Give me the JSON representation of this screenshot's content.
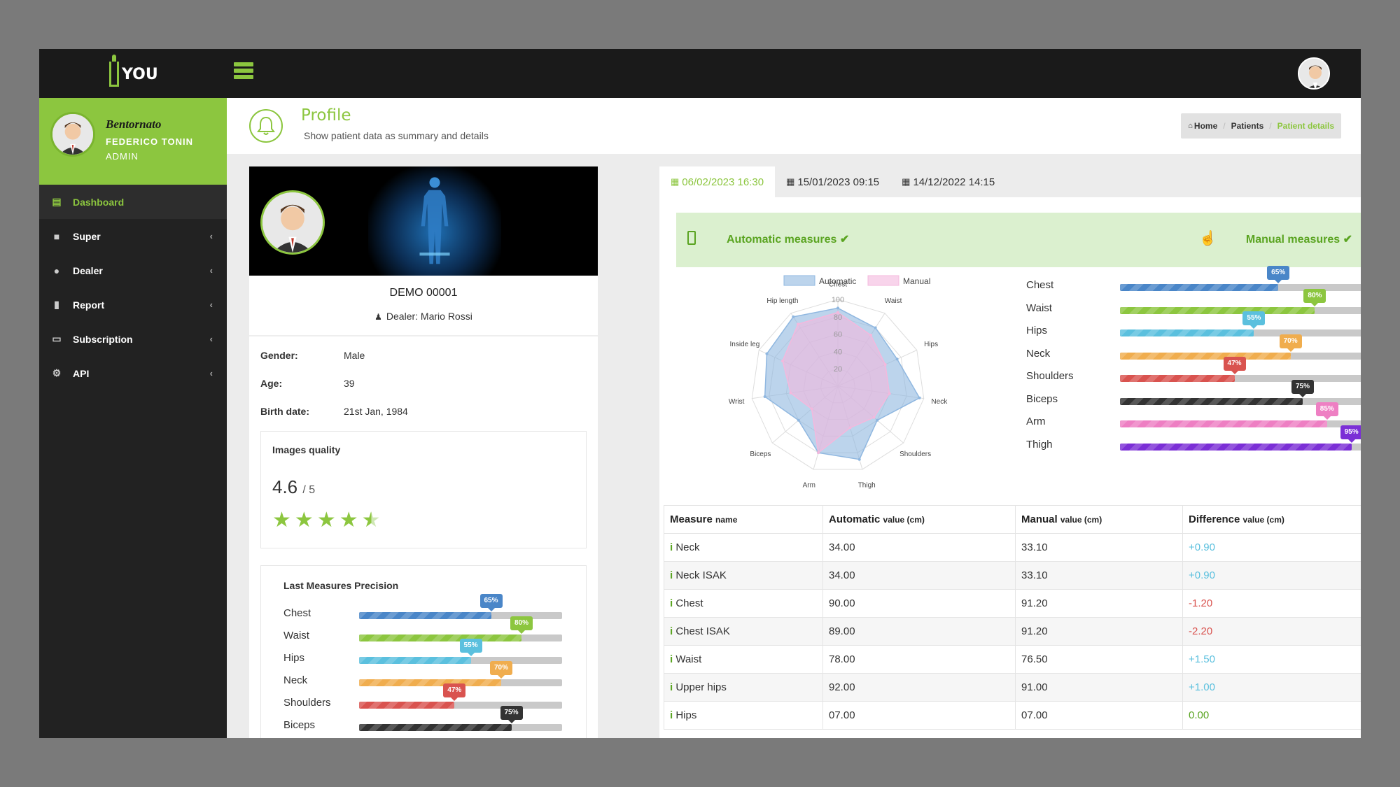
{
  "app": {
    "logo_text": "YOU"
  },
  "user": {
    "greeting": "Bentornato",
    "name": "FEDERICO TONIN",
    "role": "ADMIN"
  },
  "nav": [
    {
      "label": "Dashboard",
      "icon": "clipboard-icon"
    },
    {
      "label": "Super",
      "icon": "lock-icon"
    },
    {
      "label": "Dealer",
      "icon": "user-tie-icon"
    },
    {
      "label": "Report",
      "icon": "file-icon"
    },
    {
      "label": "Subscription",
      "icon": "credit-card-icon"
    },
    {
      "label": "API",
      "icon": "cogs-icon"
    }
  ],
  "page": {
    "title": "Profile",
    "subtitle": "Show patient data as summary and details"
  },
  "breadcrumb": [
    "Home",
    "Patients",
    "Patient details"
  ],
  "patient": {
    "code": "DEMO 00001",
    "dealer": "Dealer: Mario Rossi",
    "info": [
      {
        "label": "Gender:",
        "value": "Male"
      },
      {
        "label": "Age:",
        "value": "39"
      },
      {
        "label": "Birth date:",
        "value": "21st Jan, 1984"
      }
    ]
  },
  "quality": {
    "title": "Images quality",
    "score": "4.6",
    "max": "/ 5",
    "rating": 4.5
  },
  "precision": {
    "title": "Last Measures Precision",
    "items": [
      {
        "label": "Chest",
        "value": 65,
        "pct": "65%",
        "color": "#4a86c8"
      },
      {
        "label": "Waist",
        "value": 80,
        "pct": "80%",
        "color": "#8cc63f"
      },
      {
        "label": "Hips",
        "value": 55,
        "pct": "55%",
        "color": "#5bc0de"
      },
      {
        "label": "Neck",
        "value": 70,
        "pct": "70%",
        "color": "#f0ad4e"
      },
      {
        "label": "Shoulders",
        "value": 47,
        "pct": "47%",
        "color": "#d9534f"
      },
      {
        "label": "Biceps",
        "value": 75,
        "pct": "75%",
        "color": "#333333"
      },
      {
        "label": "Arm",
        "value": 85,
        "pct": "85%",
        "color": "#ee7fc3"
      },
      {
        "label": "Thigh",
        "value": 95,
        "pct": "95%",
        "color": "#7b2fd6"
      }
    ]
  },
  "tabs": [
    "06/02/2023 16:30",
    "15/01/2023 09:15",
    "14/12/2022 14:15"
  ],
  "measures_banner": {
    "automatic": "Automatic measures ✔",
    "manual": "Manual measures ✔"
  },
  "chart_data": {
    "type": "radar",
    "categories": [
      "Chest",
      "Waist",
      "Hips",
      "Neck",
      "Shoulders",
      "Thigh",
      "Arm",
      "Biceps",
      "Wrist",
      "Inside leg",
      "Hip length"
    ],
    "ticks": [
      "20",
      "40",
      "60",
      "80",
      "100"
    ],
    "range": [
      0,
      100
    ],
    "series": [
      {
        "name": "Automatic",
        "color": "#8fb7e0",
        "values": [
          90,
          80,
          75,
          95,
          60,
          88,
          80,
          60,
          85,
          90,
          95
        ]
      },
      {
        "name": "Manual",
        "color": "#f4b8dd",
        "values": [
          85,
          70,
          60,
          60,
          55,
          50,
          80,
          40,
          55,
          70,
          85
        ]
      }
    ]
  },
  "table": {
    "headers": [
      {
        "main": "Measure",
        "sub": "name"
      },
      {
        "main": "Automatic",
        "sub": "value (cm)"
      },
      {
        "main": "Manual",
        "sub": "value (cm)"
      },
      {
        "main": "Difference",
        "sub": "value (cm)"
      }
    ],
    "rows": [
      {
        "name": "Neck",
        "auto": "34.00",
        "manual": "33.10",
        "diff": "+0.90",
        "sign": "pos"
      },
      {
        "name": "Neck ISAK",
        "auto": "34.00",
        "manual": "33.10",
        "diff": "+0.90",
        "sign": "pos"
      },
      {
        "name": "Chest",
        "auto": "90.00",
        "manual": "91.20",
        "diff": "-1.20",
        "sign": "neg"
      },
      {
        "name": "Chest ISAK",
        "auto": "89.00",
        "manual": "91.20",
        "diff": "-2.20",
        "sign": "neg"
      },
      {
        "name": "Waist",
        "auto": "78.00",
        "manual": "76.50",
        "diff": "+1.50",
        "sign": "pos"
      },
      {
        "name": "Upper hips",
        "auto": "92.00",
        "manual": "91.00",
        "diff": "+1.00",
        "sign": "pos"
      },
      {
        "name": "Hips",
        "auto": "07.00",
        "manual": "07.00",
        "diff": "0.00",
        "sign": "zero"
      }
    ]
  }
}
